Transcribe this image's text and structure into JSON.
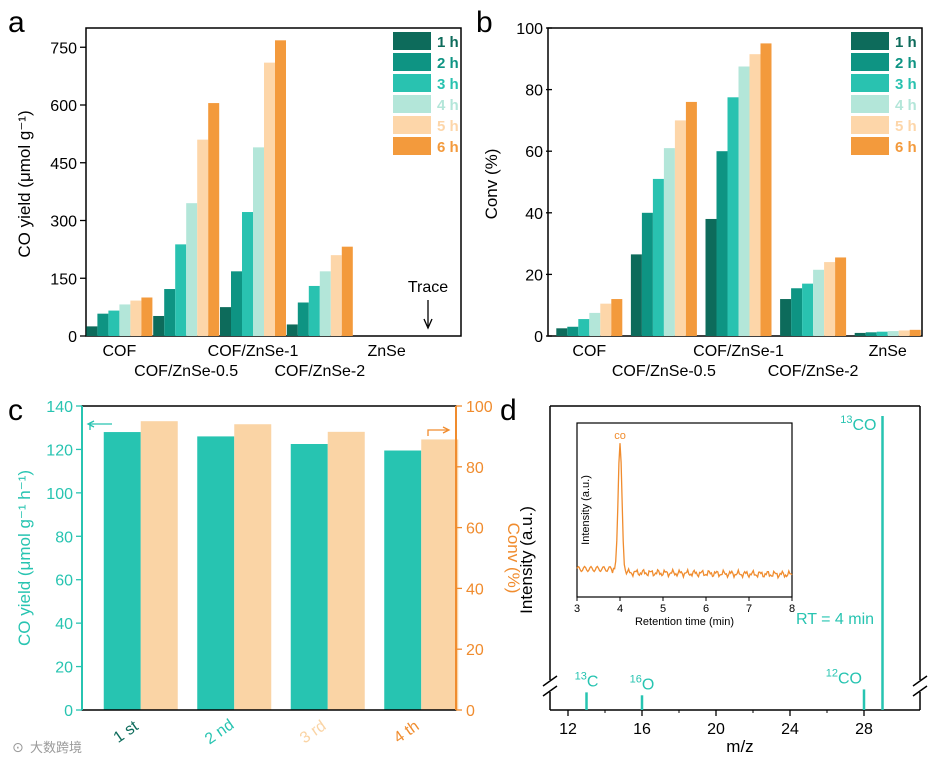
{
  "watermark": "大数跨境",
  "panels": {
    "a": {
      "letter": "a"
    },
    "b": {
      "letter": "b"
    },
    "c": {
      "letter": "c"
    },
    "d": {
      "letter": "d"
    }
  },
  "colors": {
    "hours": [
      "#0d6b5b",
      "#0e9483",
      "#29c2b0",
      "#b3e6d9",
      "#fdd6a9",
      "#f39a3c"
    ],
    "teal": "#27c4b1",
    "peach": "#fad4a5",
    "orange": "#f08c2e",
    "c_xtick_colors": [
      "#0d6b5b",
      "#27c4b1",
      "#fad4a5",
      "#f08c2e"
    ]
  },
  "chart_data": [
    {
      "id": "a",
      "type": "bar",
      "ylabel": "CO yield (μmol g⁻¹)",
      "ylim": [
        0,
        800
      ],
      "yticks": [
        0,
        150,
        300,
        450,
        600,
        750
      ],
      "categories": [
        "COF",
        "COF/ZnSe-0.5",
        "COF/ZnSe-1",
        "COF/ZnSe-2",
        "ZnSe"
      ],
      "series": [
        {
          "name": "1 h",
          "values": [
            25,
            52,
            75,
            30,
            0
          ]
        },
        {
          "name": "2 h",
          "values": [
            58,
            122,
            168,
            87,
            0
          ]
        },
        {
          "name": "3 h",
          "values": [
            66,
            238,
            322,
            130,
            0
          ]
        },
        {
          "name": "4 h",
          "values": [
            82,
            345,
            490,
            168,
            0
          ]
        },
        {
          "name": "5 h",
          "values": [
            92,
            510,
            710,
            210,
            0
          ]
        },
        {
          "name": "6 h",
          "values": [
            100,
            605,
            768,
            232,
            0
          ]
        }
      ],
      "annotation": "Trace"
    },
    {
      "id": "b",
      "type": "bar",
      "ylabel": "Conv (%)",
      "ylim": [
        0,
        100
      ],
      "yticks": [
        0,
        20,
        40,
        60,
        80,
        100
      ],
      "categories": [
        "COF",
        "COF/ZnSe-0.5",
        "COF/ZnSe-1",
        "COF/ZnSe-2",
        "ZnSe"
      ],
      "series": [
        {
          "name": "1 h",
          "values": [
            2.5,
            26.5,
            38,
            12,
            1
          ]
        },
        {
          "name": "2 h",
          "values": [
            3,
            40,
            60,
            15.5,
            1.2
          ]
        },
        {
          "name": "3 h",
          "values": [
            5.5,
            51,
            77.5,
            17,
            1.4
          ]
        },
        {
          "name": "4 h",
          "values": [
            7.5,
            61,
            87.5,
            21.5,
            1.6
          ]
        },
        {
          "name": "5 h",
          "values": [
            10.5,
            70,
            91.5,
            24,
            1.8
          ]
        },
        {
          "name": "6 h",
          "values": [
            12,
            76,
            95,
            25.5,
            2
          ]
        }
      ]
    },
    {
      "id": "c",
      "type": "bar",
      "ylabel": "CO yield (μmol g⁻¹ h⁻¹)",
      "ylabel_right": "Conv (%)",
      "ylim": [
        0,
        140
      ],
      "ylim_right": [
        0,
        100
      ],
      "yticks": [
        0,
        20,
        40,
        60,
        80,
        100,
        120,
        140
      ],
      "yticks_right": [
        0,
        20,
        40,
        60,
        80,
        100
      ],
      "categories": [
        "1 st",
        "2 nd",
        "3 rd",
        "4 th"
      ],
      "series": [
        {
          "name": "CO yield",
          "axis": "left",
          "values": [
            128,
            126,
            122.5,
            119.5
          ]
        },
        {
          "name": "Conv",
          "axis": "right",
          "values": [
            95,
            94,
            91.5,
            89
          ]
        }
      ]
    },
    {
      "id": "d",
      "type": "line",
      "xlabel": "m/z",
      "ylabel": "Intensity (a.u.)",
      "xticks": [
        12,
        16,
        20,
        24,
        28
      ],
      "xticks_display": [
        12,
        16,
        20,
        24,
        28
      ],
      "peaks": [
        {
          "label_super": "13",
          "label_base": "C",
          "x": 13,
          "height": 0.06
        },
        {
          "label_super": "16",
          "label_base": "O",
          "x": 16,
          "height": 0.05
        },
        {
          "label_super": "12",
          "label_base": "CO",
          "x": 28,
          "height": 0.07
        },
        {
          "label_super": "13",
          "label_base": "CO",
          "x": 29,
          "height": 1.0
        }
      ],
      "rt_text": "RT = 4 min",
      "inset": {
        "type": "line",
        "xlabel": "Retention time (min)",
        "ylabel": "Intensity (a.u.)",
        "xlim": [
          3,
          8
        ],
        "xticks": [
          3,
          4,
          5,
          6,
          7,
          8
        ],
        "peak_label": "co",
        "peak_x": 4.0
      }
    }
  ]
}
